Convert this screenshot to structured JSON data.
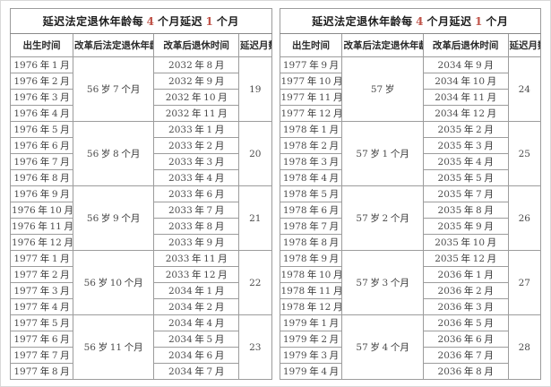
{
  "tables": [
    {
      "title": "延迟法定退休年龄每 4 个月延迟 1 个月",
      "headers": [
        "出生时间",
        "改革后法定退休年龄",
        "改革后退休时间",
        "延迟月数"
      ],
      "groups": [
        {
          "births": [
            "1976 年 1 月",
            "1976 年 2 月",
            "1976 年 3 月",
            "1976 年 4 月"
          ],
          "age": "56 岁 7 个月",
          "retire": [
            "2032 年 8 月",
            "2032 年 9 月",
            "2032 年 10 月",
            "2032 年 11 月"
          ],
          "delay": "19"
        },
        {
          "births": [
            "1976 年 5 月",
            "1976 年 6 月",
            "1976 年 7 月",
            "1976 年 8 月"
          ],
          "age": "56 岁 8 个月",
          "retire": [
            "2033 年 1 月",
            "2033 年 2 月",
            "2033 年 3 月",
            "2033 年 4 月"
          ],
          "delay": "20"
        },
        {
          "births": [
            "1976 年 9 月",
            "1976 年 10 月",
            "1976 年 11 月",
            "1976 年 12 月"
          ],
          "age": "56 岁 9 个月",
          "retire": [
            "2033 年 6 月",
            "2033 年 7 月",
            "2033 年 8 月",
            "2033 年 9 月"
          ],
          "delay": "21"
        },
        {
          "births": [
            "1977 年 1 月",
            "1977 年 2 月",
            "1977 年 3 月",
            "1977 年 4 月"
          ],
          "age": "56 岁 10 个月",
          "retire": [
            "2033 年 11 月",
            "2033 年 12 月",
            "2034 年 1 月",
            "2034 年 2 月"
          ],
          "delay": "22"
        },
        {
          "births": [
            "1977 年 5 月",
            "1977 年 6 月",
            "1977 年 7 月",
            "1977 年 8 月"
          ],
          "age": "56 岁 11 个月",
          "retire": [
            "2034 年 4 月",
            "2034 年 5 月",
            "2034 年 6 月",
            "2034 年 7 月"
          ],
          "delay": "23"
        }
      ]
    },
    {
      "title": "延迟法定退休年龄每 4 个月延迟 1 个月",
      "headers": [
        "出生时间",
        "改革后法定退休年龄",
        "改革后退休时间",
        "延迟月数"
      ],
      "groups": [
        {
          "births": [
            "1977 年 9 月",
            "1977 年 10 月",
            "1977 年 11 月",
            "1977 年 12 月"
          ],
          "age": "57 岁",
          "retire": [
            "2034 年 9 月",
            "2034 年 10 月",
            "2034 年 11 月",
            "2034 年 12 月"
          ],
          "delay": "24"
        },
        {
          "births": [
            "1978 年 1 月",
            "1978 年 2 月",
            "1978 年 3 月",
            "1978 年 4 月"
          ],
          "age": "57 岁 1 个月",
          "retire": [
            "2035 年 2 月",
            "2035 年 3 月",
            "2035 年 4 月",
            "2035 年 5 月"
          ],
          "delay": "25"
        },
        {
          "births": [
            "1978 年 5 月",
            "1978 年 6 月",
            "1978 年 7 月",
            "1978 年 8 月"
          ],
          "age": "57 岁 2 个月",
          "retire": [
            "2035 年 7 月",
            "2035 年 8 月",
            "2035 年 9 月",
            "2035 年 10 月"
          ],
          "delay": "26"
        },
        {
          "births": [
            "1978 年 9 月",
            "1978 年 10 月",
            "1978 年 11 月",
            "1978 年 12 月"
          ],
          "age": "57 岁 3 个月",
          "retire": [
            "2035 年 12 月",
            "2036 年 1 月",
            "2036 年 2 月",
            "2036 年 3 月"
          ],
          "delay": "27"
        },
        {
          "births": [
            "1979 年 1 月",
            "1979 年 2 月",
            "1979 年 3 月",
            "1979 年 4 月"
          ],
          "age": "57 岁 4 个月",
          "retire": [
            "2036 年 5 月",
            "2036 年 6 月",
            "2036 年 7 月",
            "2036 年 8 月"
          ],
          "delay": "28"
        }
      ]
    }
  ],
  "colors": {
    "title_number_accent": "#c0544a",
    "border_inner": "#9c9c9c",
    "border_outer": "#7e7e7e",
    "text": "#333333"
  }
}
